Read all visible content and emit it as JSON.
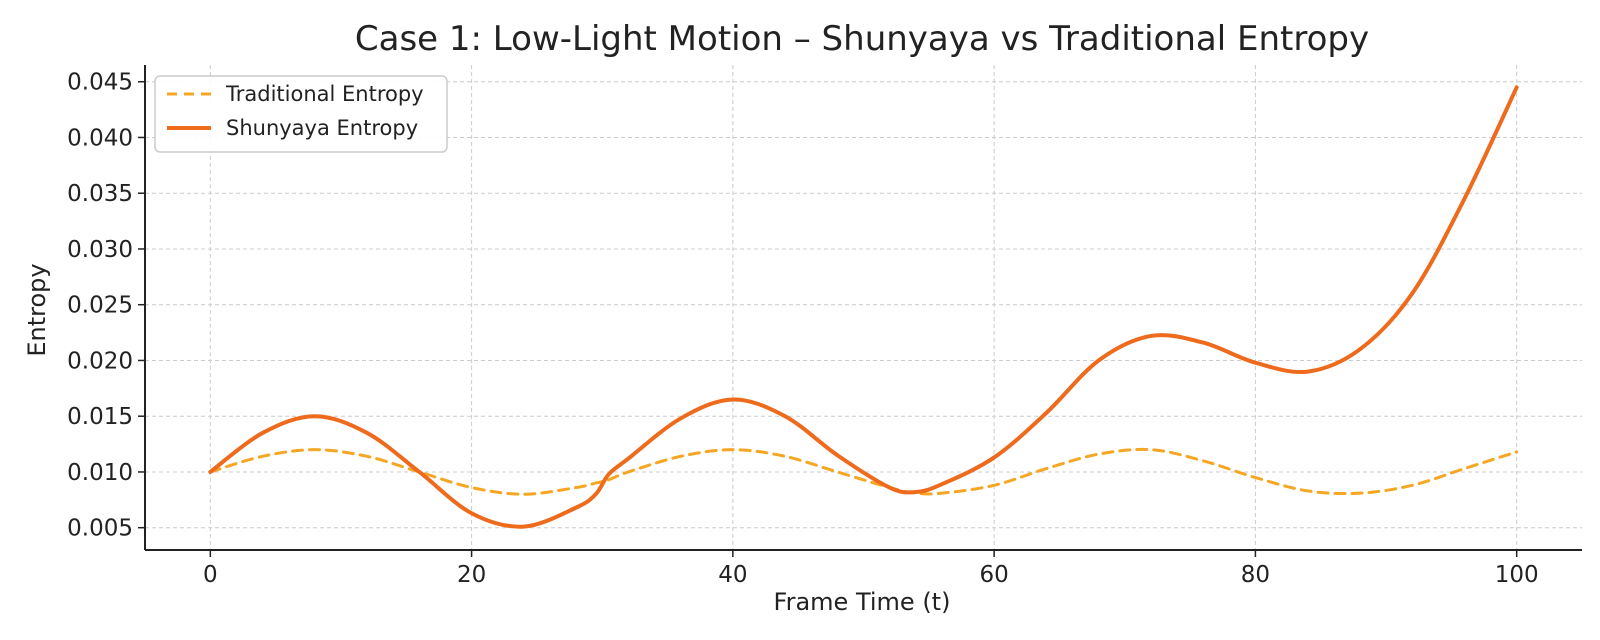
{
  "chart_data": {
    "type": "line",
    "title": "Case 1: Low-Light Motion – Shunyaya vs Traditional Entropy",
    "xlabel": "Frame Time (t)",
    "ylabel": "Entropy",
    "xlim": [
      -5,
      105
    ],
    "ylim": [
      0.003,
      0.0465
    ],
    "xticks": [
      0,
      20,
      40,
      60,
      80,
      100
    ],
    "yticks": [
      0.005,
      0.01,
      0.015,
      0.02,
      0.025,
      0.03,
      0.035,
      0.04,
      0.045
    ],
    "xtick_labels": [
      "0",
      "20",
      "40",
      "60",
      "80",
      "100"
    ],
    "ytick_labels": [
      "0.005",
      "0.010",
      "0.015",
      "0.020",
      "0.025",
      "0.030",
      "0.035",
      "0.040",
      "0.045"
    ],
    "grid": true,
    "legend_position": "top-left",
    "x": [
      0,
      4,
      8,
      12,
      16,
      20,
      24,
      28,
      29.5,
      30.5,
      32,
      36,
      40,
      44,
      48,
      52,
      54,
      56,
      60,
      64,
      68,
      72,
      76,
      80,
      84,
      88,
      92,
      96,
      100
    ],
    "series": [
      {
        "name": "Traditional Entropy",
        "color": "#f5a623",
        "style": "dashed",
        "values": [
          0.01,
          0.0114,
          0.012,
          0.0114,
          0.01,
          0.0086,
          0.008,
          0.0086,
          0.009,
          0.0093,
          0.01,
          0.0114,
          0.012,
          0.0114,
          0.01,
          0.0086,
          0.0081,
          0.0081,
          0.0088,
          0.0103,
          0.0116,
          0.012,
          0.011,
          0.0095,
          0.0083,
          0.0081,
          0.0088,
          0.0103,
          0.0118
        ]
      },
      {
        "name": "Shunyaya Entropy",
        "color": "#ee6a1c",
        "style": "solid",
        "values": [
          0.01,
          0.0135,
          0.015,
          0.0135,
          0.01,
          0.0063,
          0.0051,
          0.0068,
          0.008,
          0.0098,
          0.0112,
          0.0148,
          0.0165,
          0.015,
          0.0115,
          0.0086,
          0.0082,
          0.0089,
          0.0113,
          0.0153,
          0.02,
          0.0222,
          0.0216,
          0.0198,
          0.019,
          0.021,
          0.026,
          0.0345,
          0.0445
        ]
      }
    ]
  }
}
